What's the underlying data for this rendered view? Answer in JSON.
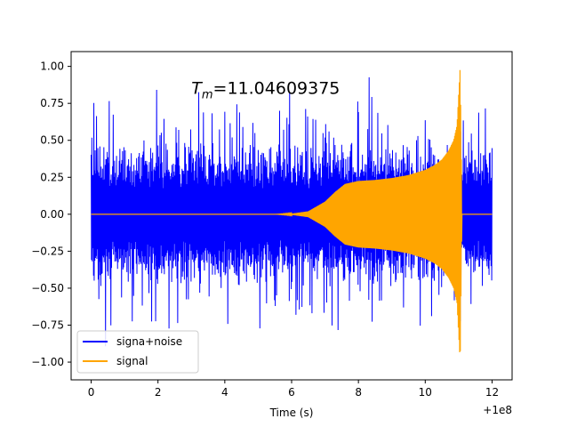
{
  "chart_data": {
    "type": "line",
    "title": "",
    "xlabel": "Time (s)",
    "ylabel": "",
    "x_offset_label": "+1e8",
    "xlim": [
      -0.6,
      12.6
    ],
    "ylim": [
      -1.12,
      1.1
    ],
    "xticks": [
      0,
      2,
      4,
      6,
      8,
      10,
      12
    ],
    "xtick_labels": [
      "0",
      "2",
      "4",
      "6",
      "8",
      "10",
      "12"
    ],
    "yticks": [
      -1.0,
      -0.75,
      -0.5,
      -0.25,
      0.0,
      0.25,
      0.5,
      0.75,
      1.0
    ],
    "ytick_labels": [
      "−1.00",
      "−0.75",
      "−0.50",
      "−0.25",
      "0.00",
      "0.25",
      "0.50",
      "0.75",
      "1.00"
    ],
    "grid": false,
    "legend_position": "lower-left",
    "annotation": {
      "prefix": "T",
      "subscript": "m",
      "value": "=11.04609375",
      "x": 3.0,
      "y": 0.815
    },
    "series": [
      {
        "name": "signa+noise",
        "color": "#0000ff",
        "x_range": [
          0,
          12
        ],
        "description": "noisy band filling roughly ±0.55 with spikes up to ±1.0, wrapping the signal envelope",
        "max_amplitude": 1.0
      },
      {
        "name": "signal",
        "color": "#ffa500",
        "x_range": [
          0,
          12
        ],
        "envelope": {
          "x": [
            0,
            5.5,
            6.0,
            6.5,
            7.0,
            7.3,
            7.6,
            8.0,
            8.5,
            9.0,
            9.5,
            10.0,
            10.3,
            10.5,
            10.7,
            10.85,
            10.95,
            11.046,
            11.1,
            12.0
          ],
          "amp": [
            0,
            0,
            0.004,
            0.02,
            0.085,
            0.15,
            0.205,
            0.225,
            0.232,
            0.245,
            0.265,
            0.3,
            0.335,
            0.37,
            0.43,
            0.5,
            0.6,
            1.0,
            0,
            0
          ]
        }
      }
    ]
  }
}
